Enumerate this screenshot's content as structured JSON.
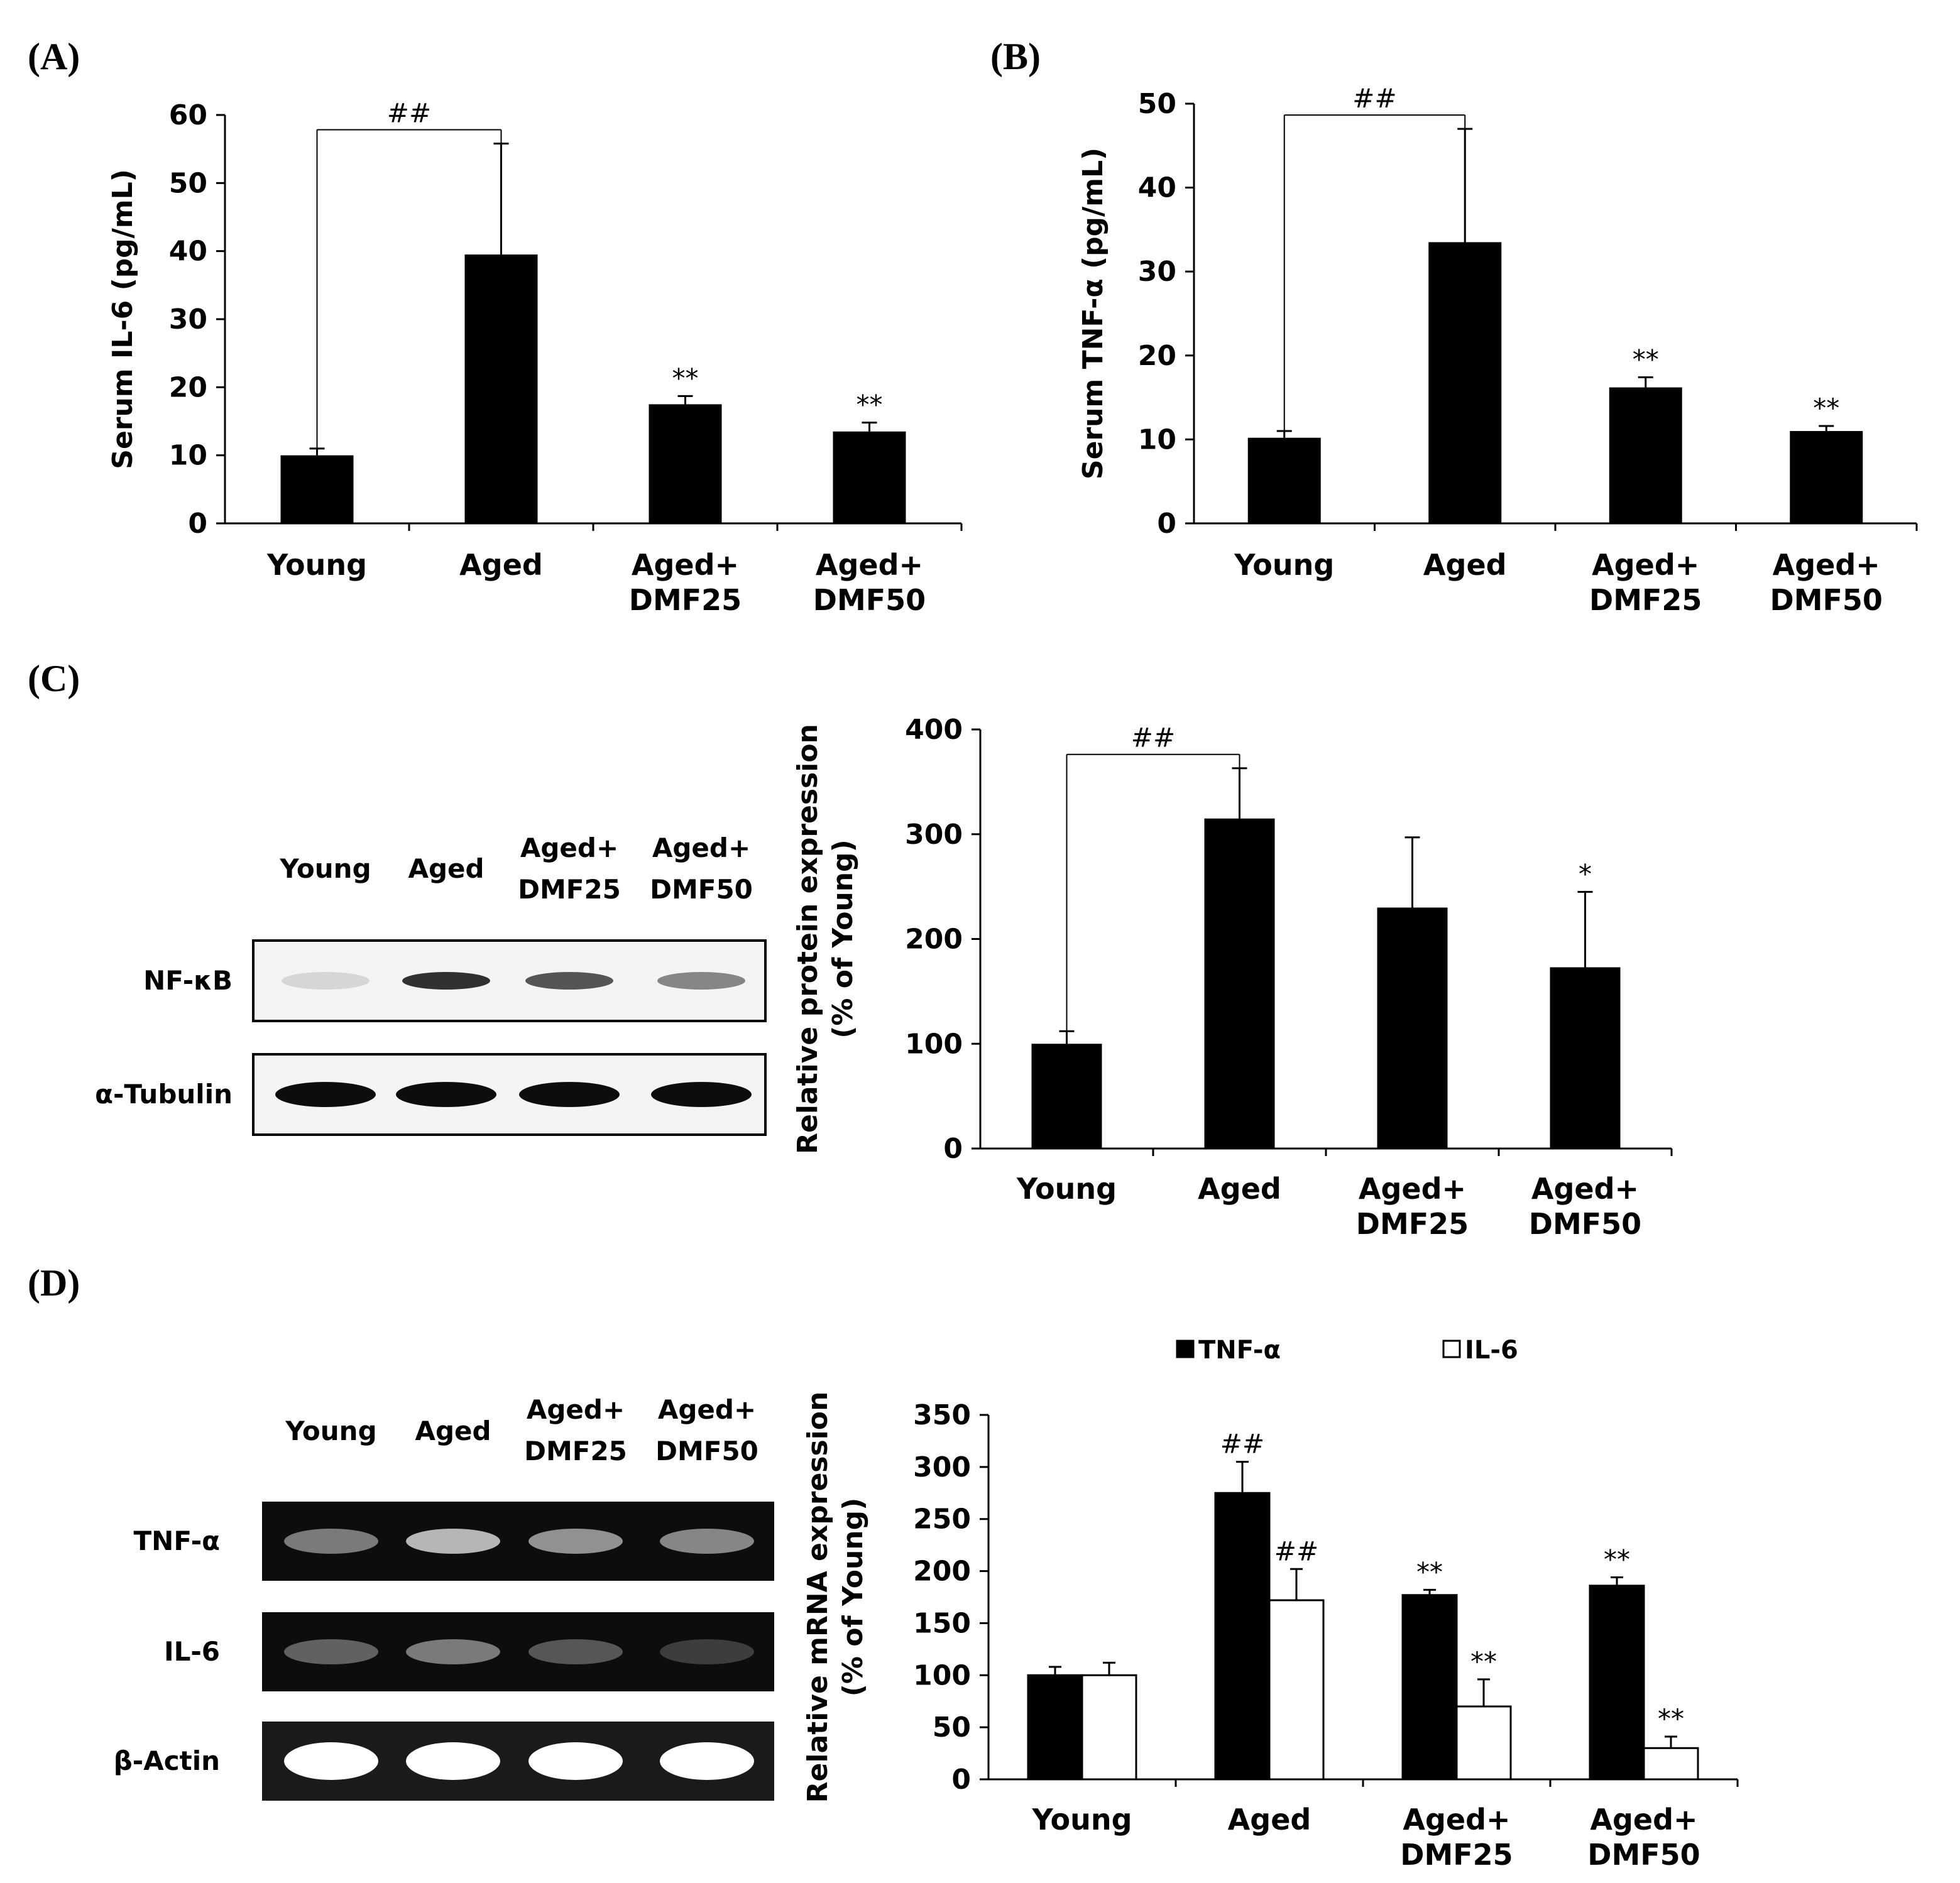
{
  "panels": {
    "A": "(A)",
    "B": "(B)",
    "C": "(C)",
    "D": "(D)"
  },
  "colors": {
    "tnf": "#000000",
    "il6": "#ffffff",
    "axis": "#000000"
  },
  "blot_c": {
    "lanes": [
      [
        "Young"
      ],
      [
        "Aged"
      ],
      [
        "Aged+",
        "DMF25"
      ],
      [
        "Aged+",
        "DMF50"
      ]
    ],
    "rows": [
      "NF-κB",
      "α-Tubulin"
    ],
    "band_intensity": [
      [
        0.12,
        0.8,
        0.65,
        0.45
      ],
      [
        0.95,
        0.95,
        0.95,
        0.95
      ]
    ]
  },
  "gel_d": {
    "lanes": [
      [
        "Young"
      ],
      [
        "Aged"
      ],
      [
        "Aged+",
        "DMF25"
      ],
      [
        "Aged+",
        "DMF50"
      ]
    ],
    "rows": [
      "TNF-α",
      "IL-6",
      "β-Actin"
    ],
    "band_intensity": [
      [
        0.45,
        0.7,
        0.55,
        0.5
      ],
      [
        0.35,
        0.45,
        0.3,
        0.2
      ],
      [
        1,
        1,
        1,
        1
      ]
    ]
  },
  "chart_data": [
    {
      "panel": "A",
      "type": "bar",
      "categories": [
        [
          "Young"
        ],
        [
          "Aged"
        ],
        [
          "Aged+",
          "DMF25"
        ],
        [
          "Aged+",
          "DMF50"
        ]
      ],
      "values": [
        10,
        39.5,
        17.5,
        13.5
      ],
      "errors": [
        1,
        16.3,
        1.2,
        1.3
      ],
      "annotations": [
        "",
        "",
        "**",
        "**"
      ],
      "bracket": {
        "from": 0,
        "to": 1,
        "label": "##"
      },
      "ylabel": "Serum IL-6 (pg/mL)",
      "ylim": [
        0,
        60
      ],
      "yticks": [
        0,
        10,
        20,
        30,
        40,
        50,
        60
      ]
    },
    {
      "panel": "B",
      "type": "bar",
      "categories": [
        [
          "Young"
        ],
        [
          "Aged"
        ],
        [
          "Aged+",
          "DMF25"
        ],
        [
          "Aged+",
          "DMF50"
        ]
      ],
      "values": [
        10.2,
        33.5,
        16.2,
        11
      ],
      "errors": [
        0.8,
        13.5,
        1.2,
        0.6
      ],
      "annotations": [
        "",
        "",
        "**",
        "**"
      ],
      "bracket": {
        "from": 0,
        "to": 1,
        "label": "##"
      },
      "ylabel": "Serum TNF-α (pg/mL)",
      "ylim": [
        0,
        50
      ],
      "yticks": [
        0,
        10,
        20,
        30,
        40,
        50
      ]
    },
    {
      "panel": "C",
      "type": "bar",
      "categories": [
        [
          "Young"
        ],
        [
          "Aged"
        ],
        [
          "Aged+",
          "DMF25"
        ],
        [
          "Aged+",
          "DMF50"
        ]
      ],
      "values": [
        100,
        315,
        230,
        173
      ],
      "errors": [
        12,
        48,
        67,
        72
      ],
      "annotations": [
        "",
        "",
        "",
        "*"
      ],
      "bracket": {
        "from": 0,
        "to": 1,
        "label": "##"
      },
      "ylabel": [
        "Relative protein expression",
        "(% of Young)"
      ],
      "ylim": [
        0,
        400
      ],
      "yticks": [
        0,
        100,
        200,
        300,
        400
      ]
    },
    {
      "panel": "D",
      "type": "bar",
      "categories": [
        [
          "Young"
        ],
        [
          "Aged"
        ],
        [
          "Aged+",
          "DMF25"
        ],
        [
          "Aged+",
          "DMF50"
        ]
      ],
      "series": [
        {
          "name": "TNF-α",
          "values": [
            100,
            275,
            177,
            186
          ],
          "errors": [
            8,
            30,
            5,
            8
          ],
          "annotations": [
            "",
            "##",
            "**",
            "**"
          ]
        },
        {
          "name": "IL-6",
          "values": [
            100,
            172,
            70,
            30
          ],
          "errors": [
            12,
            30,
            26,
            11
          ],
          "annotations": [
            "",
            "##",
            "**",
            "**"
          ]
        }
      ],
      "ylabel": [
        "Relative mRNA expression",
        "(% of Young)"
      ],
      "ylim": [
        0,
        350
      ],
      "yticks": [
        0,
        50,
        100,
        150,
        200,
        250,
        300,
        350
      ]
    }
  ]
}
